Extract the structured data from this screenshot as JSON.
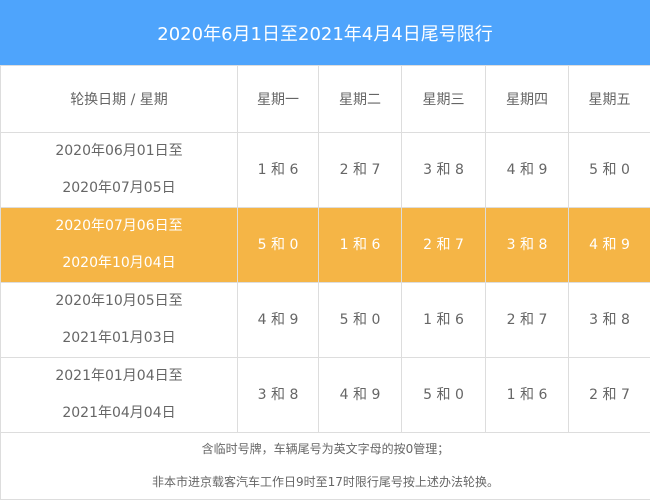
{
  "title": "2020年6月1日至2021年4月4日尾号限行",
  "columns": [
    "轮换日期 / 星期",
    "星期一",
    "星期二",
    "星期三",
    "星期四",
    "星期五"
  ],
  "rows": [
    {
      "from": "2020年06月01日至",
      "to": "2020年07月05日",
      "days": [
        "1 和 6",
        "2 和 7",
        "3 和 8",
        "4 和 9",
        "5 和 0"
      ],
      "highlighted": false
    },
    {
      "from": "2020年07月06日至",
      "to": "2020年10月04日",
      "days": [
        "5 和 0",
        "1 和 6",
        "2 和 7",
        "3 和 8",
        "4 和 9"
      ],
      "highlighted": true
    },
    {
      "from": "2020年10月05日至",
      "to": "2021年01月03日",
      "days": [
        "4 和 9",
        "5 和 0",
        "1 和 6",
        "2 和 7",
        "3 和 8"
      ],
      "highlighted": false
    },
    {
      "from": "2021年01月04日至",
      "to": "2021年04月04日",
      "days": [
        "3 和 8",
        "4 和 9",
        "5 和 0",
        "1 和 6",
        "2 和 7"
      ],
      "highlighted": false
    }
  ],
  "notes": [
    "含临时号牌，车辆尾号为英文字母的按0管理；",
    "非本市进京载客汽车工作日9时至17时限行尾号按上述办法轮换。"
  ],
  "colors": {
    "header": "#4ea4fc",
    "highlight": "#f5b546"
  }
}
